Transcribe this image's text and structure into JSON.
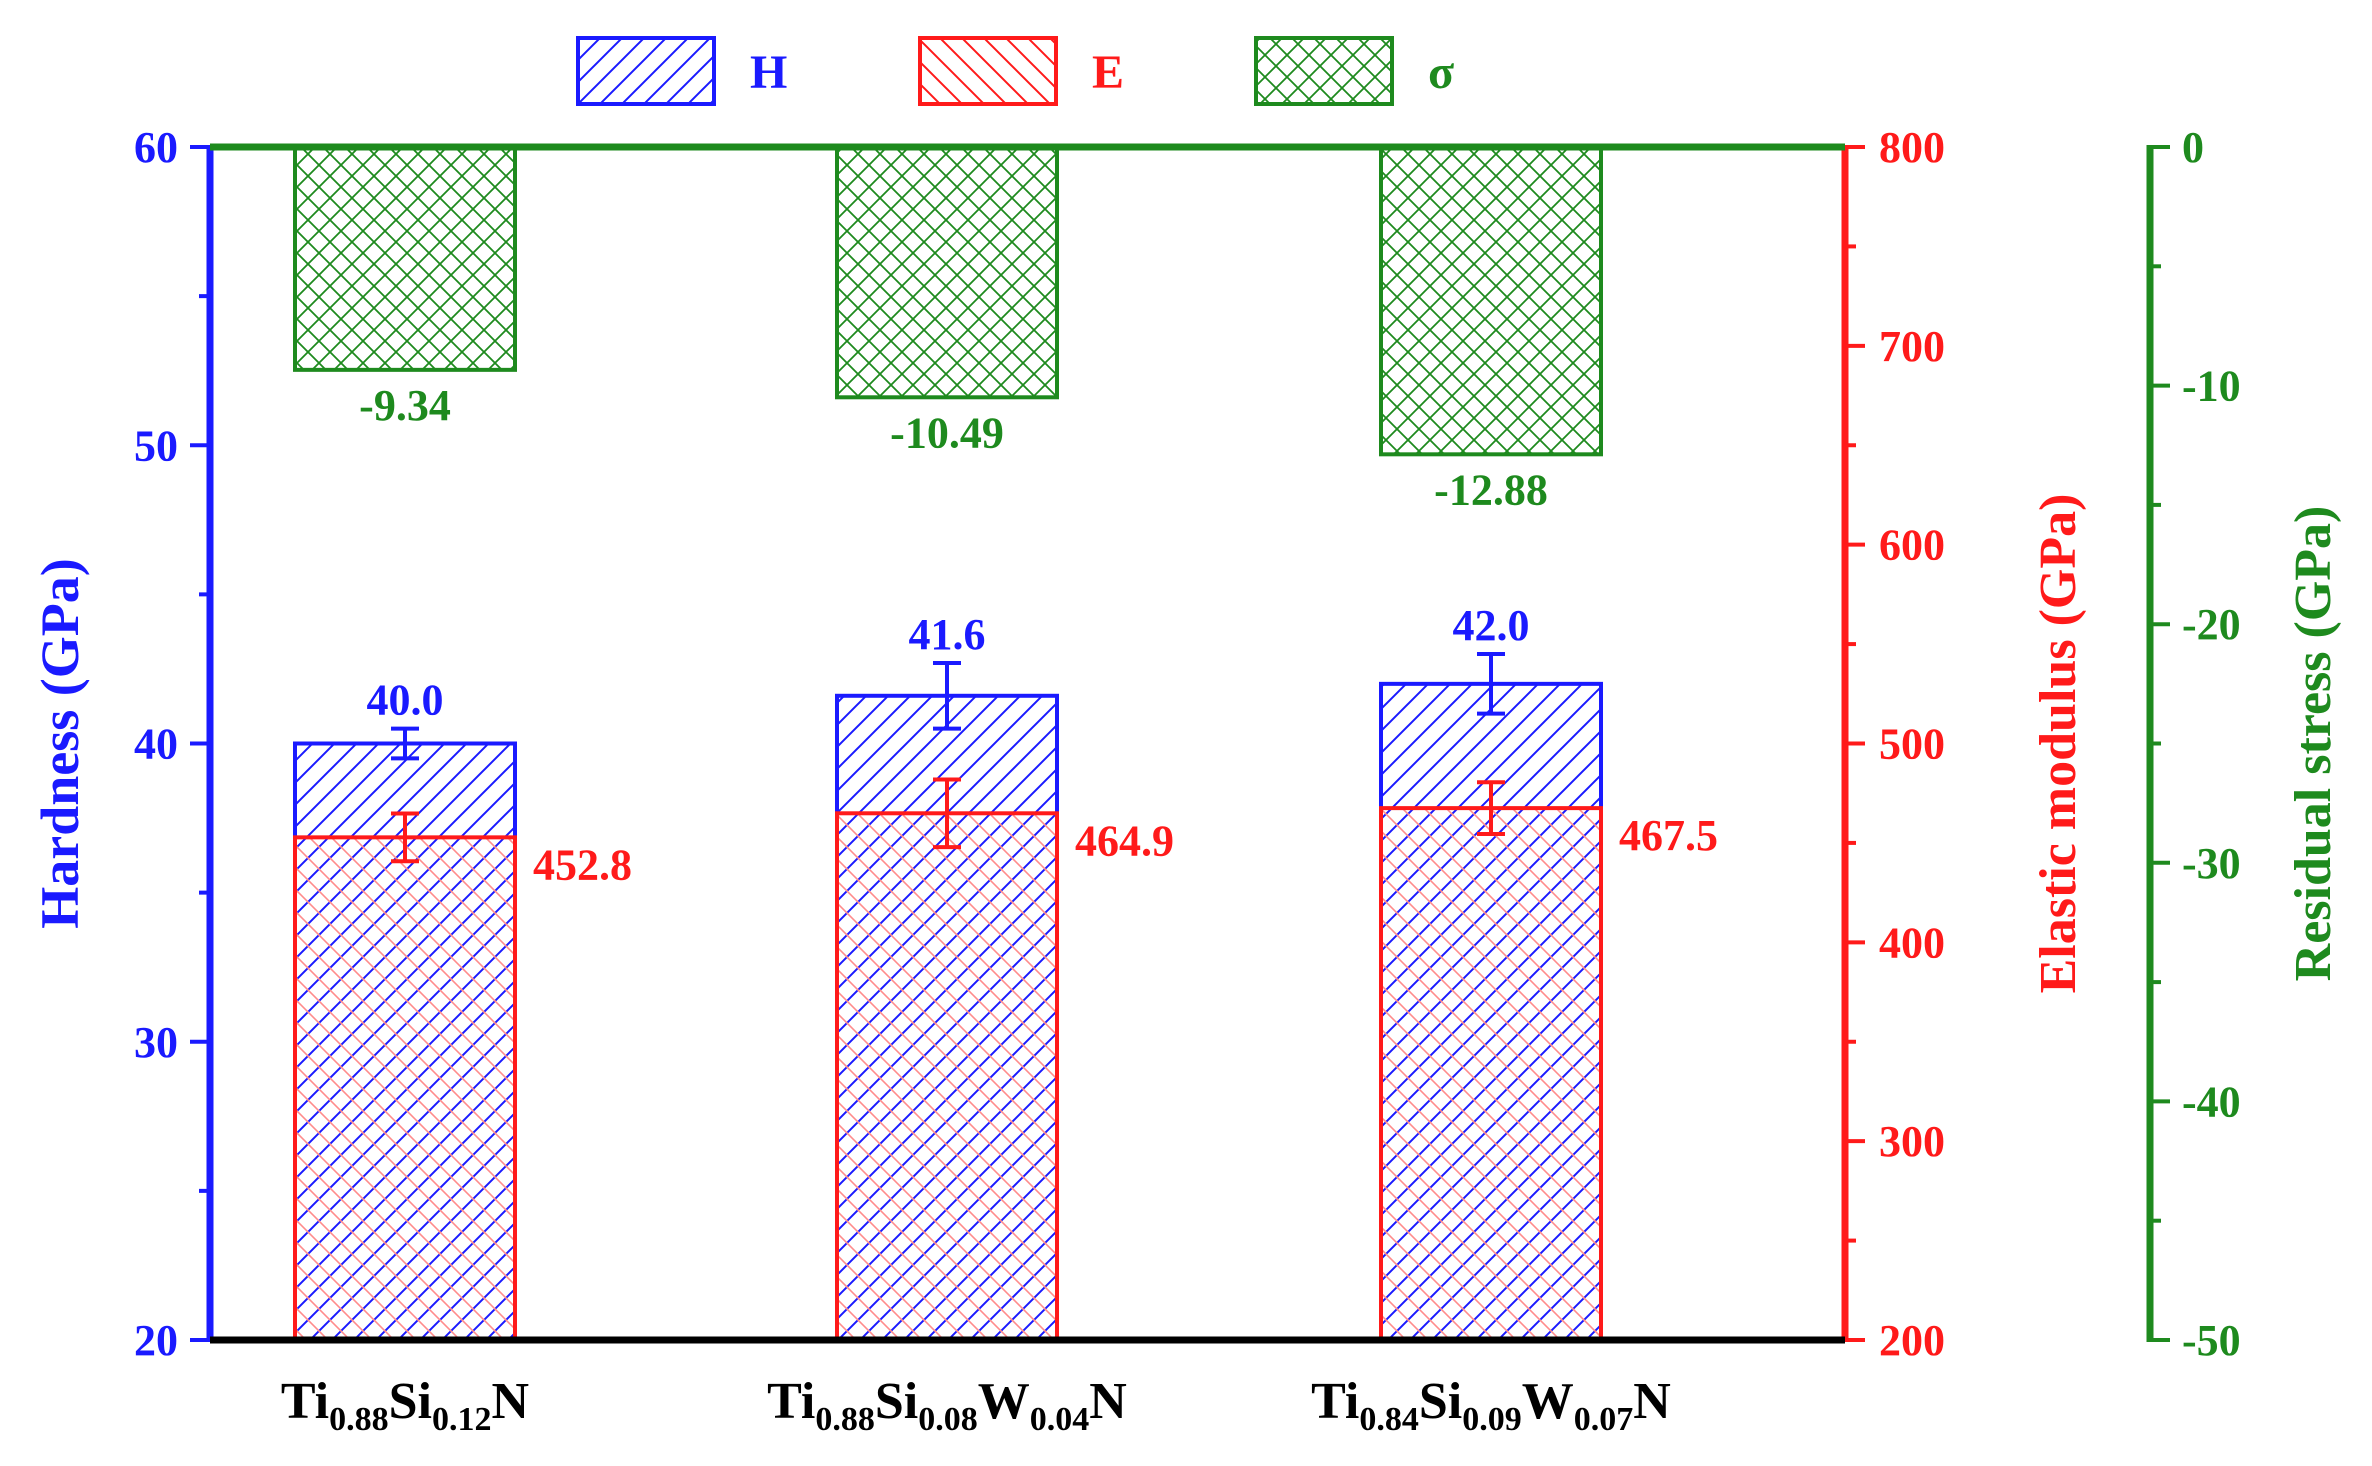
{
  "chart_data": {
    "type": "bar",
    "categories": [
      {
        "label": "Ti0.88Si0.12N",
        "parts": [
          [
            "Ti",
            ""
          ],
          [
            "0.88",
            "sub"
          ],
          [
            "Si",
            ""
          ],
          [
            "0.12",
            "sub"
          ],
          [
            "N",
            ""
          ]
        ]
      },
      {
        "label": "Ti0.88Si0.08W0.04N",
        "parts": [
          [
            "Ti",
            ""
          ],
          [
            "0.88",
            "sub"
          ],
          [
            "Si",
            ""
          ],
          [
            "0.08",
            "sub"
          ],
          [
            "W",
            ""
          ],
          [
            "0.04",
            "sub"
          ],
          [
            "N",
            ""
          ]
        ]
      },
      {
        "label": "Ti0.84Si0.09W0.07N",
        "parts": [
          [
            "Ti",
            ""
          ],
          [
            "0.84",
            "sub"
          ],
          [
            "Si",
            ""
          ],
          [
            "0.09",
            "sub"
          ],
          [
            "W",
            ""
          ],
          [
            "0.07",
            "sub"
          ],
          [
            "N",
            ""
          ]
        ]
      }
    ],
    "series": [
      {
        "name": "H",
        "axis": "hardness",
        "color": "#1a1aff",
        "values": [
          40.0,
          41.6,
          42.0
        ],
        "errors": [
          0.5,
          1.1,
          1.0
        ],
        "labels": [
          "40.0",
          "41.6",
          "42.0"
        ]
      },
      {
        "name": "E",
        "axis": "elastic",
        "color": "#ff1a1a",
        "values": [
          452.8,
          464.9,
          467.5
        ],
        "errors": [
          12,
          17,
          13
        ],
        "labels": [
          "452.8",
          "464.9",
          "467.5"
        ]
      },
      {
        "name": "σ",
        "axis": "stress",
        "color": "#1e8a1e",
        "values": [
          -9.34,
          -10.49,
          -12.88
        ],
        "labels": [
          "-9.34",
          "-10.49",
          "-12.88"
        ]
      }
    ],
    "axes": {
      "hardness": {
        "label": "Hardness (GPa)",
        "min": 20,
        "max": 60,
        "ticks": [
          "20",
          "30",
          "40",
          "50",
          "60"
        ],
        "color": "#1a1aff"
      },
      "elastic": {
        "label": "Elastic modulus (GPa)",
        "min": 200,
        "max": 800,
        "ticks": [
          "200",
          "300",
          "400",
          "500",
          "600",
          "700",
          "800"
        ],
        "color": "#ff1a1a"
      },
      "stress": {
        "label": "Residual stress (GPa)",
        "min": -50,
        "max": 0,
        "ticks": [
          "-50",
          "-40",
          "-30",
          "-20",
          "-10",
          "0"
        ],
        "color": "#1e8a1e"
      }
    },
    "legend": [
      "H",
      "E",
      "σ"
    ],
    "legend_position": "top"
  }
}
